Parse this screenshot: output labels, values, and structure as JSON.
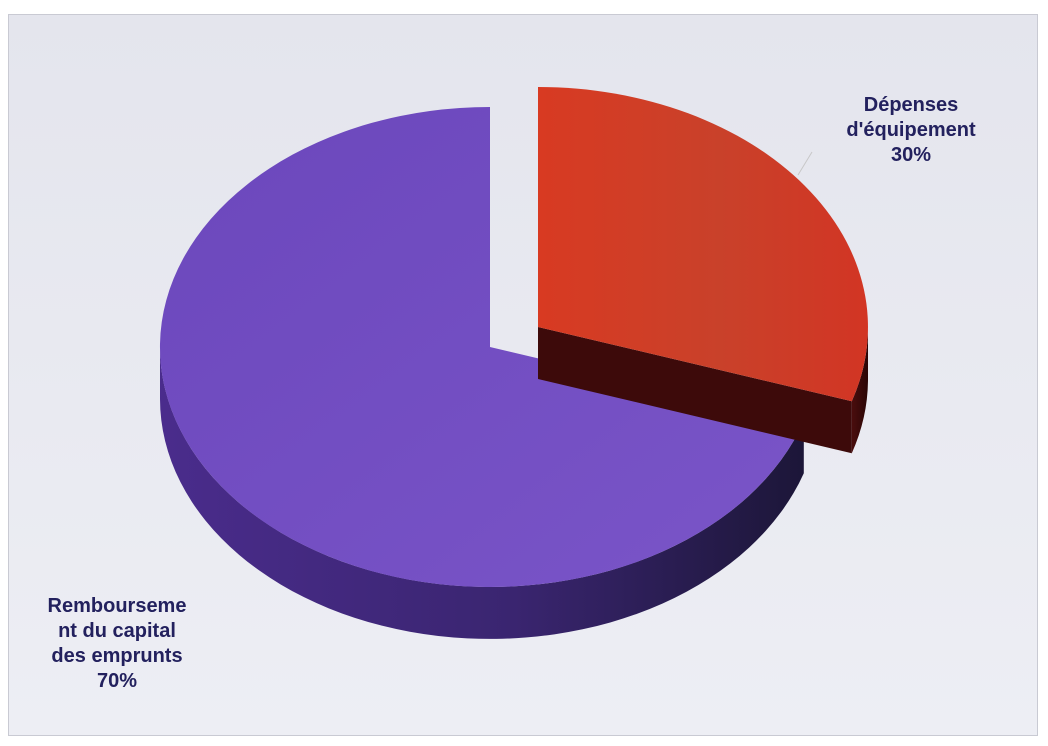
{
  "chart_data": {
    "type": "pie",
    "style": "3d-exploded",
    "slices": [
      {
        "label_lines": [
          "Dépenses",
          "d'équipement"
        ],
        "value_label": "30%",
        "value": 30,
        "color": "#c93524",
        "exploded": true
      },
      {
        "label_lines": [
          "Rembourseme",
          "nt du capital",
          "des emprunts"
        ],
        "value_label": "70%",
        "value": 70,
        "color": "#6f4bbf",
        "exploded": false
      }
    ],
    "label_color": "#23215e",
    "legend": "none"
  }
}
